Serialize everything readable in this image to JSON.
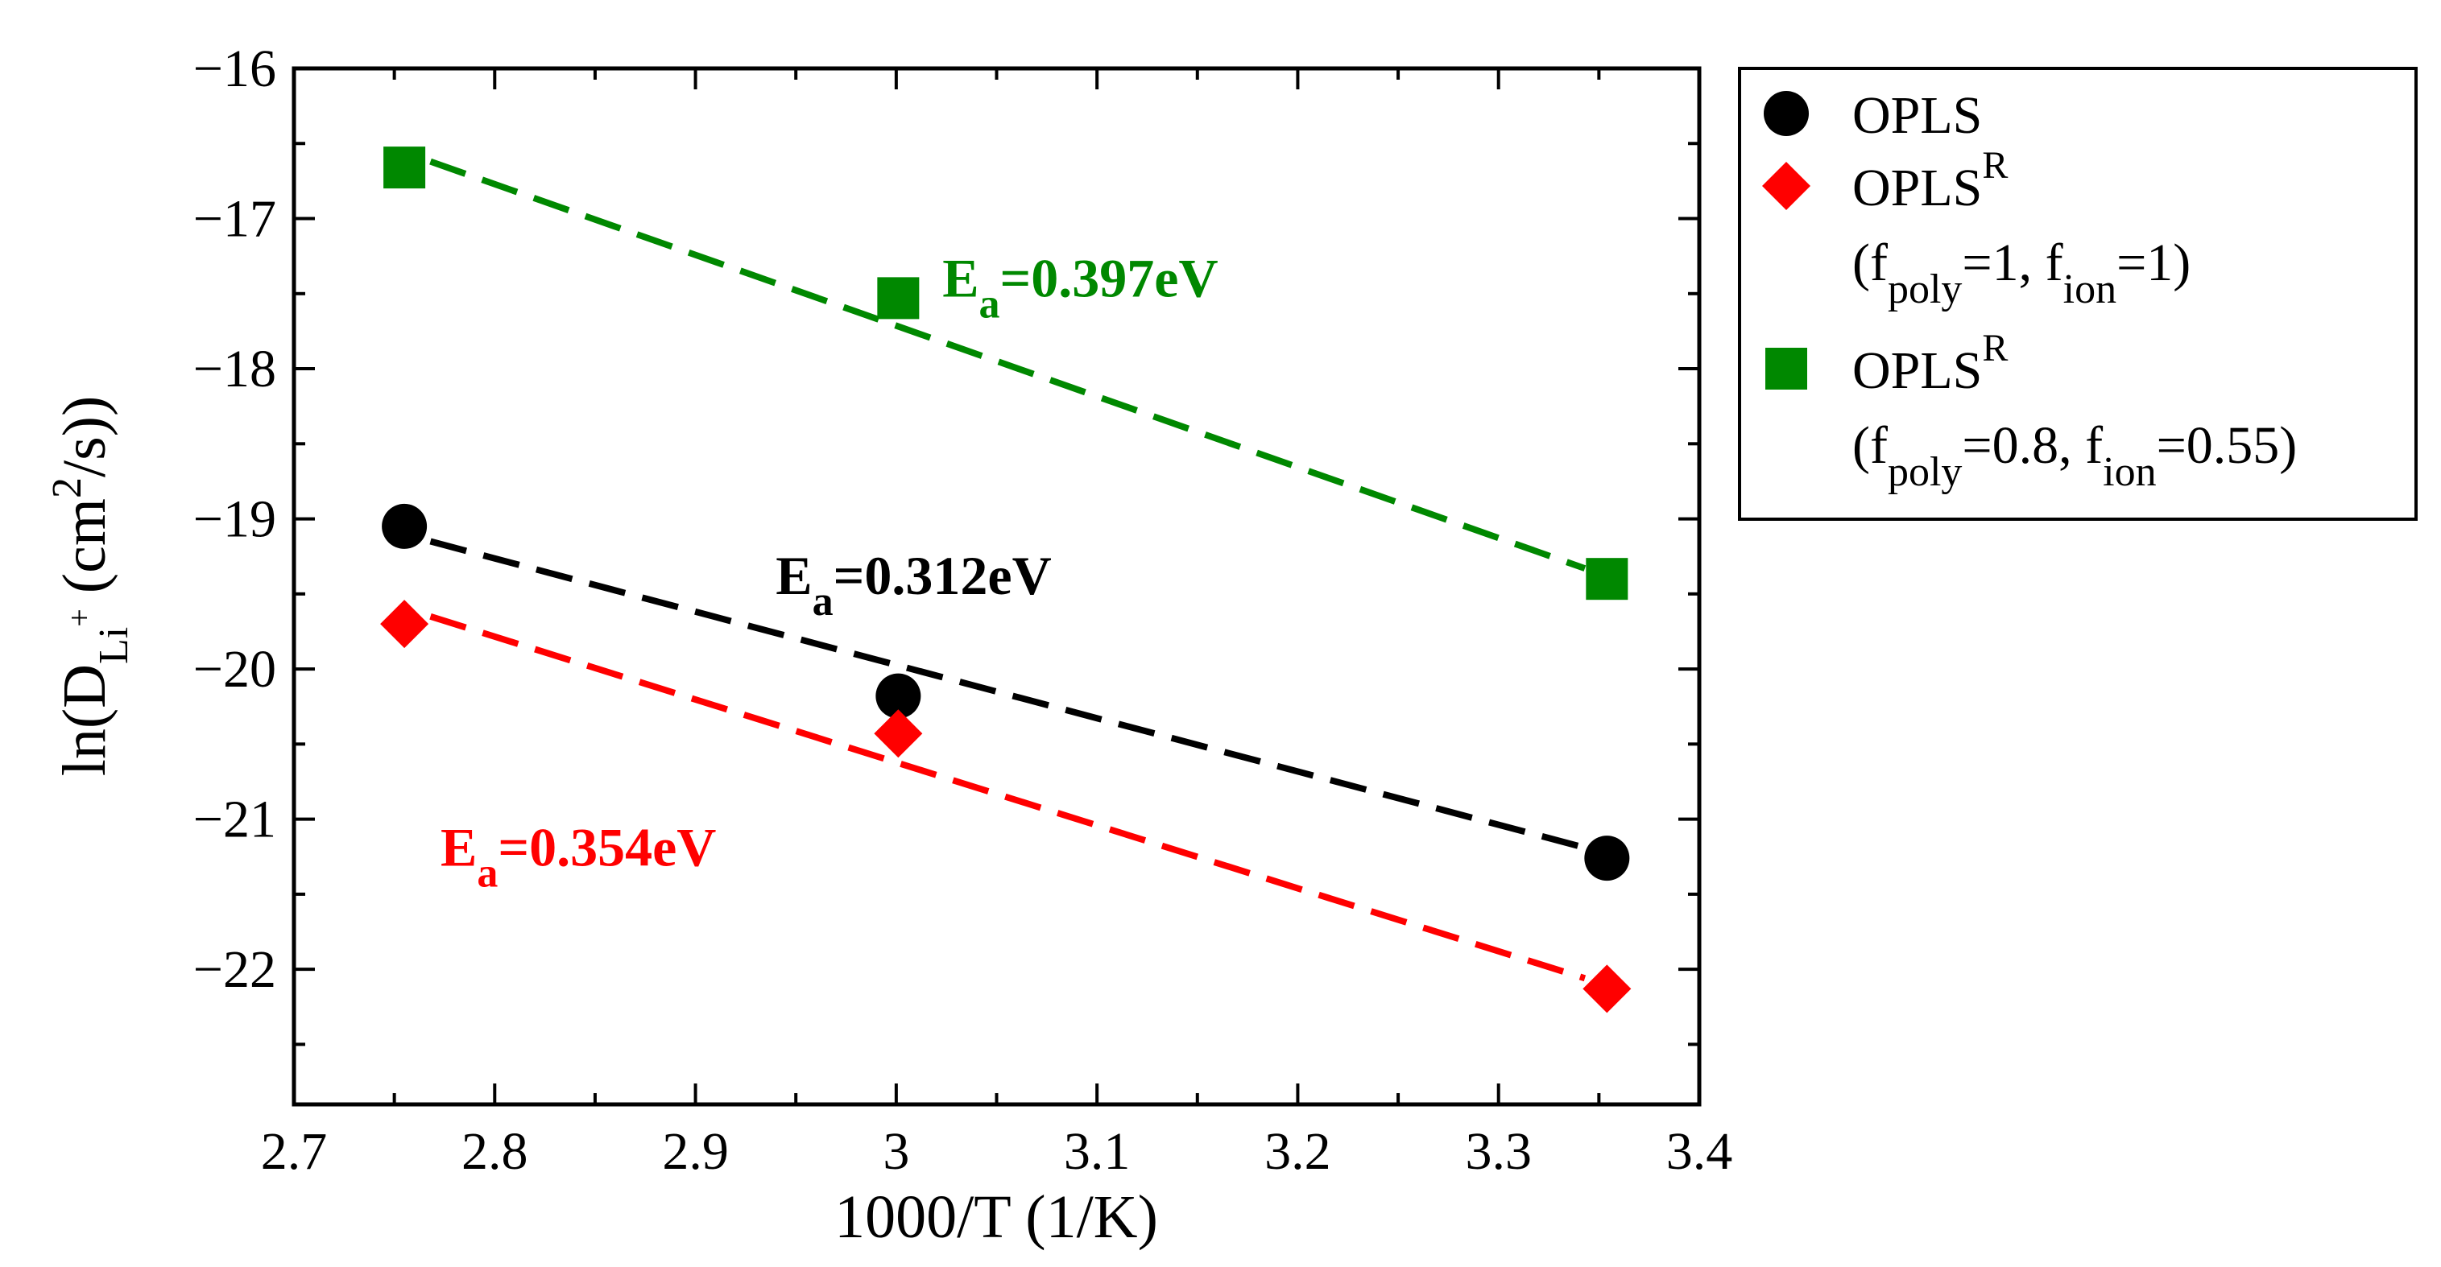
{
  "chart_data": {
    "type": "scatter",
    "xlabel": "1000/T (1/K)",
    "ylabel": {
      "pre": "ln(D",
      "sub": "Li",
      "sup_on_sub": "+",
      "mid": " (cm",
      "sup": "2",
      "post": "/s))"
    },
    "xlim": [
      2.7,
      3.4
    ],
    "ylim": [
      -22.9,
      -16.0
    ],
    "xticks": [
      2.7,
      2.8,
      2.9,
      3.0,
      3.1,
      3.2,
      3.3,
      3.4
    ],
    "xtick_labels": [
      "2.7",
      "2.8",
      "2.9",
      "3",
      "3.1",
      "3.2",
      "3.3",
      "3.4"
    ],
    "yticks": [
      -22,
      -21,
      -20,
      -19,
      -18,
      -17,
      -16
    ],
    "ytick_labels": [
      "−22",
      "−21",
      "−20",
      "−19",
      "−18",
      "−17",
      "−16"
    ],
    "grid": false,
    "legend_position": "outside-right-top",
    "series": [
      {
        "name": "OPLS",
        "legend": {
          "main": "OPLS"
        },
        "marker": "circle",
        "color": "#000000",
        "x": [
          2.755,
          3.001,
          3.354
        ],
        "y": [
          -19.05,
          -20.18,
          -21.26
        ],
        "fit": {
          "x": [
            2.768,
            3.343
          ],
          "y": [
            -19.15,
            -21.19
          ]
        },
        "annotation": {
          "label": "E",
          "sub": "a",
          "value": "=0.312eV",
          "x": 2.94,
          "y": -19.5
        }
      },
      {
        "name": "OPLS^R (f_poly=1, f_ion=1)",
        "legend": {
          "main": "OPLS",
          "sup": "R",
          "line2": [
            {
              "t": "(f"
            },
            {
              "sub": "poly"
            },
            {
              "t": "=1, f"
            },
            {
              "sub": "ion"
            },
            {
              "t": "=1)"
            }
          ]
        },
        "marker": "diamond",
        "color": "#ff0000",
        "x": [
          2.755,
          3.001,
          3.354
        ],
        "y": [
          -19.7,
          -20.43,
          -22.13
        ],
        "fit": {
          "x": [
            2.768,
            3.343
          ],
          "y": [
            -19.65,
            -22.06
          ]
        },
        "annotation": {
          "label": "E",
          "sub": "a",
          "value": "=0.354eV",
          "x": 2.773,
          "y": -21.31
        }
      },
      {
        "name": "OPLS^R (f_poly=0.8, f_ion=0.55)",
        "legend": {
          "main": "OPLS",
          "sup": "R",
          "line2": [
            {
              "t": "(f"
            },
            {
              "sub": "poly"
            },
            {
              "t": "=0.8, f"
            },
            {
              "sub": "ion"
            },
            {
              "t": "=0.55)"
            }
          ]
        },
        "marker": "square",
        "color": "#008800",
        "x": [
          2.755,
          3.001,
          3.354
        ],
        "y": [
          -16.66,
          -17.53,
          -19.4
        ],
        "fit": {
          "x": [
            2.768,
            3.343
          ],
          "y": [
            -16.62,
            -19.33
          ]
        },
        "annotation": {
          "label": "E",
          "sub": "a",
          "value": "=0.397eV",
          "x": 3.023,
          "y": -17.52
        }
      }
    ]
  }
}
